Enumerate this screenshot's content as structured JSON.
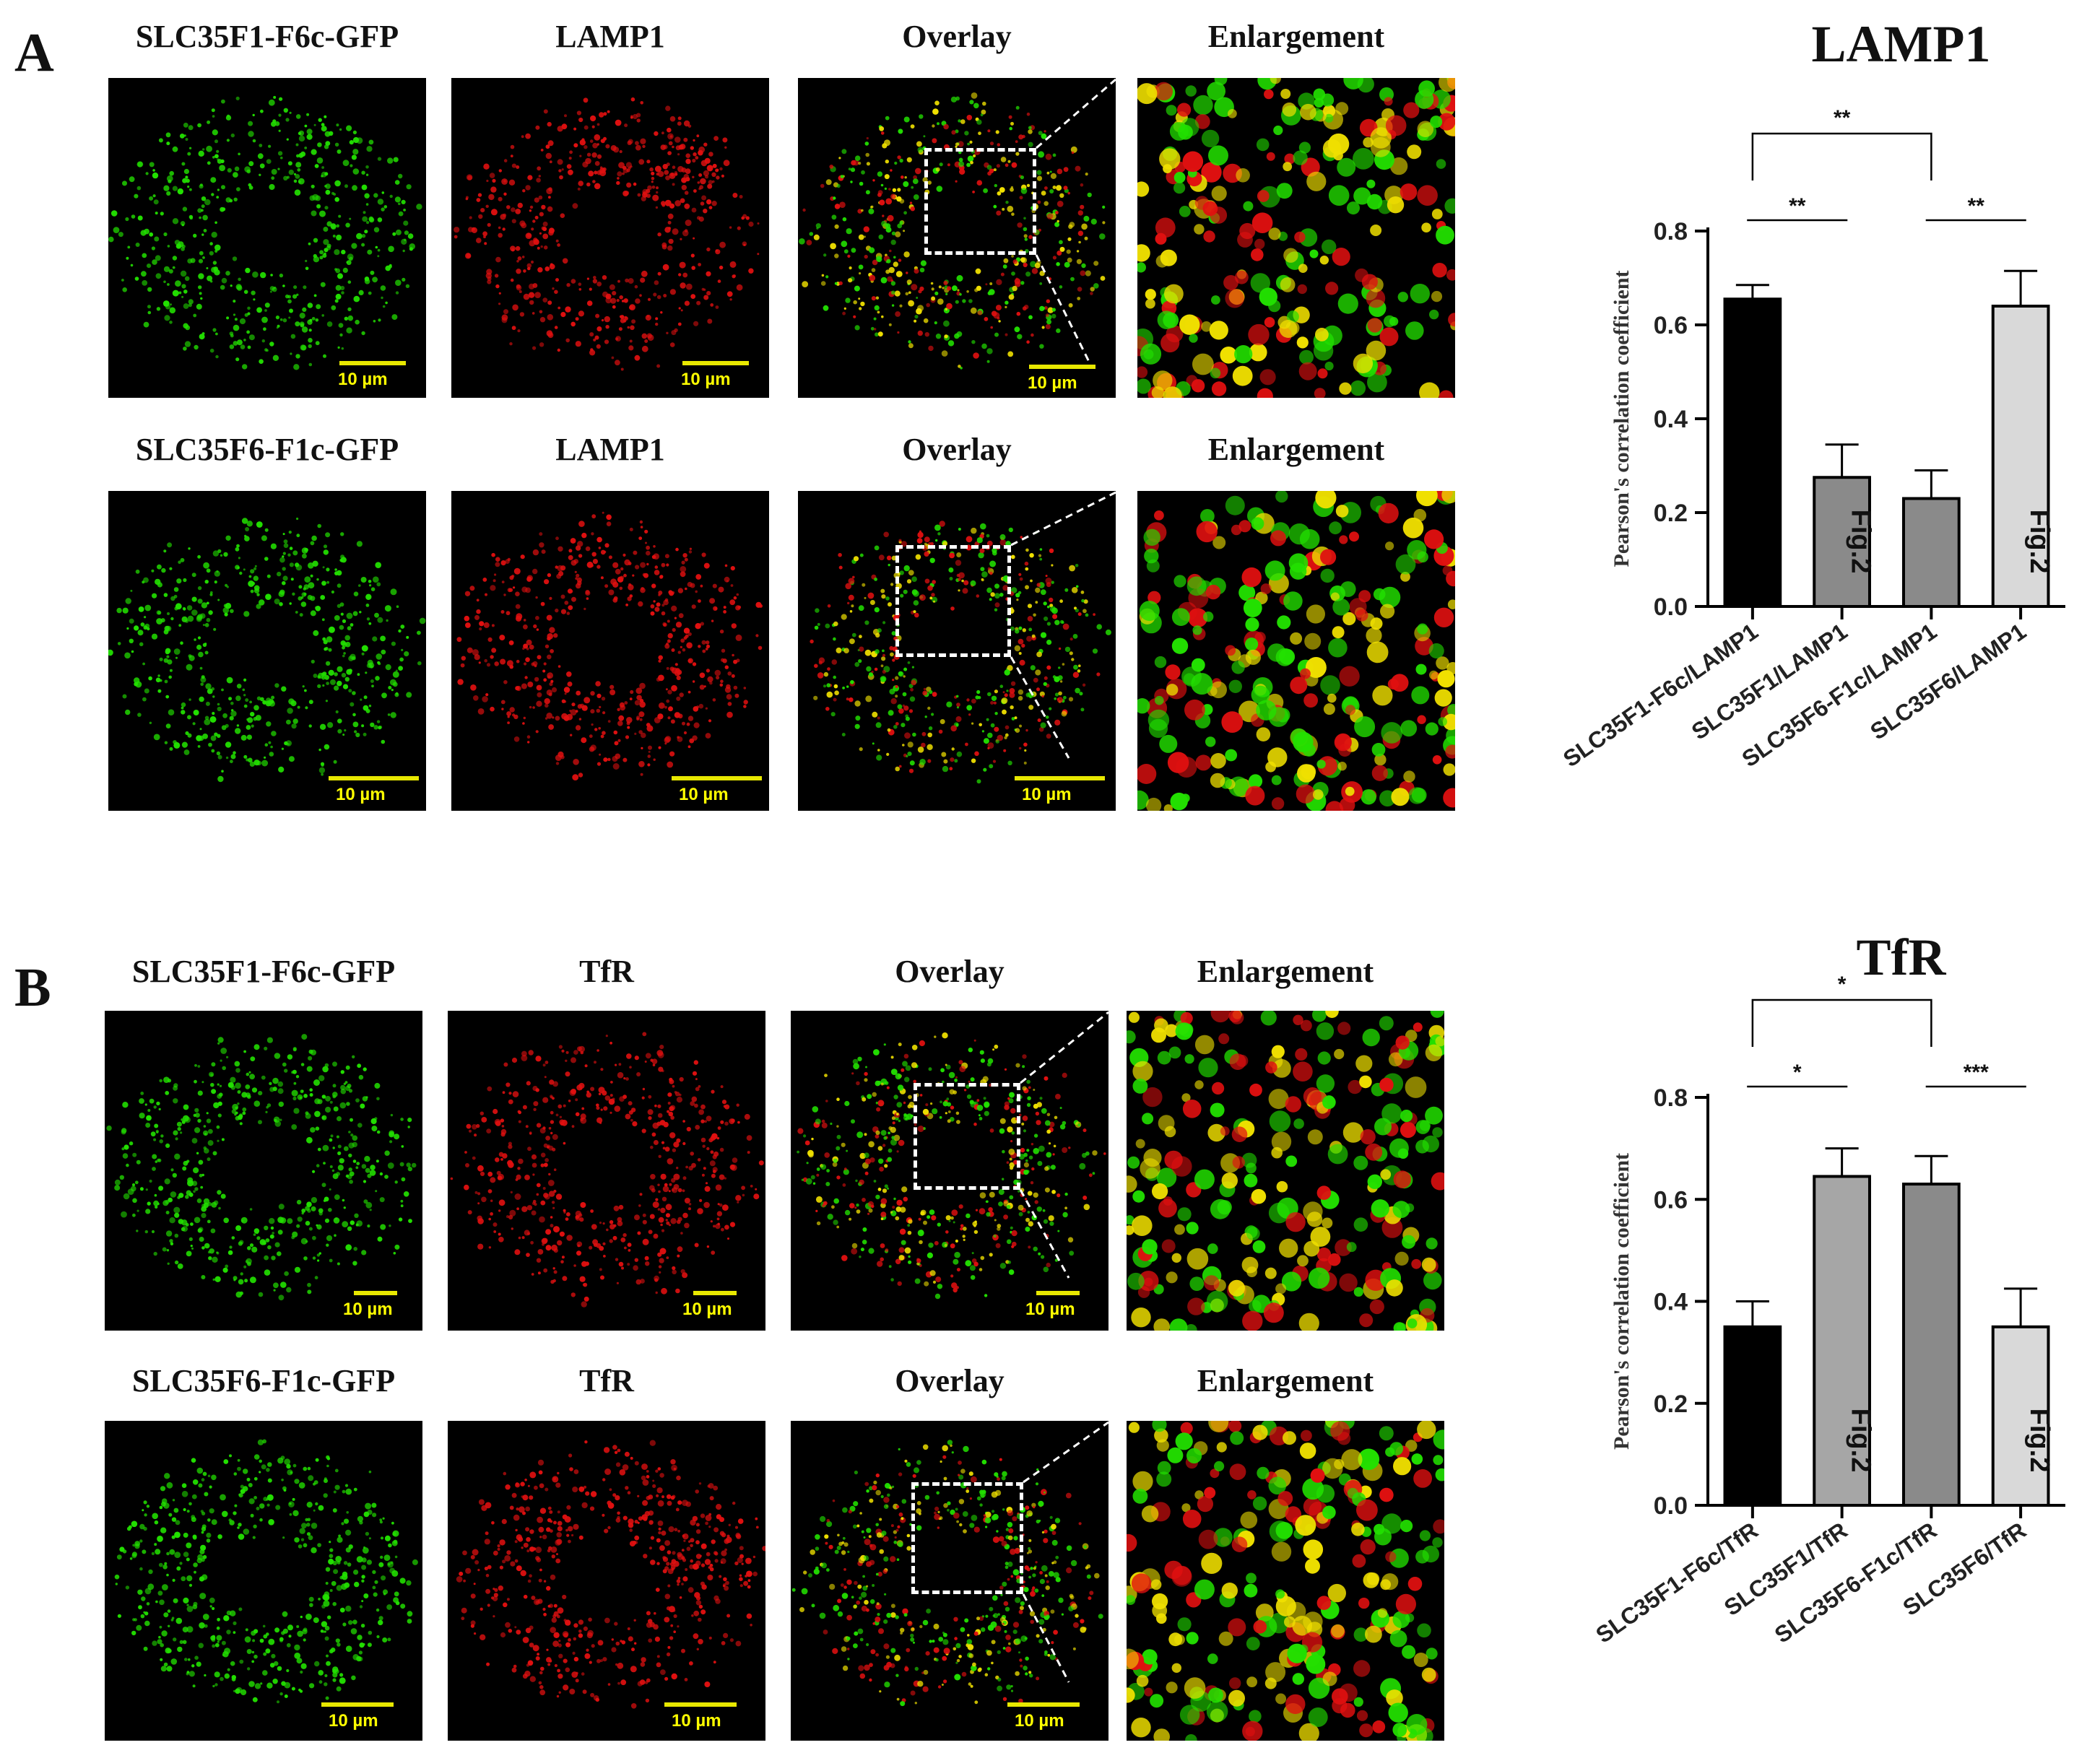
{
  "figure": {
    "panels": [
      {
        "letter": "A",
        "rows": [
          {
            "labels": [
              "SLC35F1-F6c-GFP",
              "LAMP1",
              "Overlay",
              "Enlargement"
            ],
            "scale_bar_text": "10 µm"
          },
          {
            "labels": [
              "SLC35F6-F1c-GFP",
              "LAMP1",
              "Overlay",
              "Enlargement"
            ],
            "scale_bar_text": "10 µm"
          }
        ]
      },
      {
        "letter": "B",
        "rows": [
          {
            "labels": [
              "SLC35F1-F6c-GFP",
              "TfR",
              "Overlay",
              "Enlargement"
            ],
            "scale_bar_text": "10 µm"
          },
          {
            "labels": [
              "SLC35F6-F1c-GFP",
              "TfR",
              "Overlay",
              "Enlargement"
            ],
            "scale_bar_text": "10 µm"
          }
        ]
      }
    ],
    "colors": {
      "gfp_green": "#22e000",
      "marker_red": "#e01010",
      "overlap_yellow": "#f0e000",
      "scale_yellow": "#e8e800"
    }
  },
  "chart_data": [
    {
      "type": "bar",
      "title": "LAMP1",
      "ylabel": "Pearson's correlation coefficient",
      "ylim": [
        0,
        0.8
      ],
      "yticks": [
        "0.0",
        "0.2",
        "0.4",
        "0.6",
        "0.8"
      ],
      "categories": [
        "SLC35F1-F6c/LAMP1",
        "SLC35F1/LAMP1",
        "SLC35F6-F1c/LAMP1",
        "SLC35F6/LAMP1"
      ],
      "values": [
        0.655,
        0.275,
        0.23,
        0.64
      ],
      "errors": [
        0.03,
        0.07,
        0.06,
        0.075
      ],
      "bar_colors": [
        "#000000",
        "#8a8a8a",
        "#8a8a8a",
        "#d9d9d9"
      ],
      "bar_annotations": [
        "",
        "Fig.2",
        "",
        "Fig.2"
      ],
      "significance": [
        {
          "from": 0,
          "to": 1,
          "label": "**"
        },
        {
          "from": 2,
          "to": 3,
          "label": "**"
        },
        {
          "from": 0,
          "to": 2,
          "label": "**",
          "bracket": true
        }
      ]
    },
    {
      "type": "bar",
      "title": "TfR",
      "ylabel": "Pearson's correlation coefficient",
      "ylim": [
        0,
        0.8
      ],
      "yticks": [
        "0.0",
        "0.2",
        "0.4",
        "0.6",
        "0.8"
      ],
      "categories": [
        "SLC35F1-F6c/TfR",
        "SLC35F1/TfR",
        "SLC35F6-F1c/TfR",
        "SLC35F6/TfR"
      ],
      "values": [
        0.35,
        0.645,
        0.63,
        0.35
      ],
      "errors": [
        0.05,
        0.055,
        0.055,
        0.075
      ],
      "bar_colors": [
        "#000000",
        "#a6a6a6",
        "#8a8a8a",
        "#d9d9d9"
      ],
      "bar_annotations": [
        "",
        "Fig.2",
        "",
        "Fig.2"
      ],
      "significance": [
        {
          "from": 0,
          "to": 1,
          "label": "*"
        },
        {
          "from": 2,
          "to": 3,
          "label": "***"
        },
        {
          "from": 0,
          "to": 2,
          "label": "*",
          "bracket": true
        }
      ]
    }
  ]
}
